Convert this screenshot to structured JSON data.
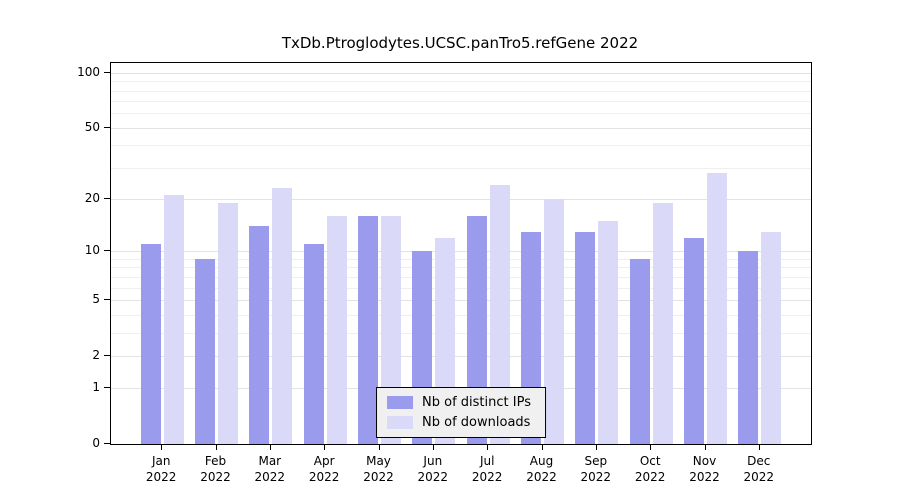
{
  "chart_data": {
    "type": "bar",
    "title": "TxDb.Ptroglodytes.UCSC.panTro5.refGene 2022",
    "categories": [
      "Jan",
      "Feb",
      "Mar",
      "Apr",
      "May",
      "Jun",
      "Jul",
      "Aug",
      "Sep",
      "Oct",
      "Nov",
      "Dec"
    ],
    "year_label": "2022",
    "series": [
      {
        "key": "distinct-ips",
        "name": "Nb of distinct IPs",
        "color": "#9b9bee",
        "values": [
          11,
          9,
          14,
          11,
          16,
          10,
          16,
          13,
          13,
          9,
          12,
          10
        ]
      },
      {
        "key": "downloads",
        "name": "Nb of downloads",
        "color": "#dadaf8",
        "values": [
          21,
          19,
          23,
          16,
          16,
          12,
          24,
          20,
          15,
          19,
          28,
          13
        ]
      }
    ],
    "yscale": "log1p",
    "ylim": [
      0,
      113
    ],
    "yticks": [
      0,
      1,
      2,
      5,
      10,
      20,
      50,
      100
    ],
    "gridlines": [
      1,
      2,
      3,
      4,
      5,
      6,
      7,
      8,
      9,
      10,
      20,
      30,
      40,
      50,
      60,
      70,
      80,
      90,
      100
    ],
    "grid": "on",
    "xlabel": "",
    "ylabel": "",
    "legend_position": "bottom-center-inside"
  }
}
